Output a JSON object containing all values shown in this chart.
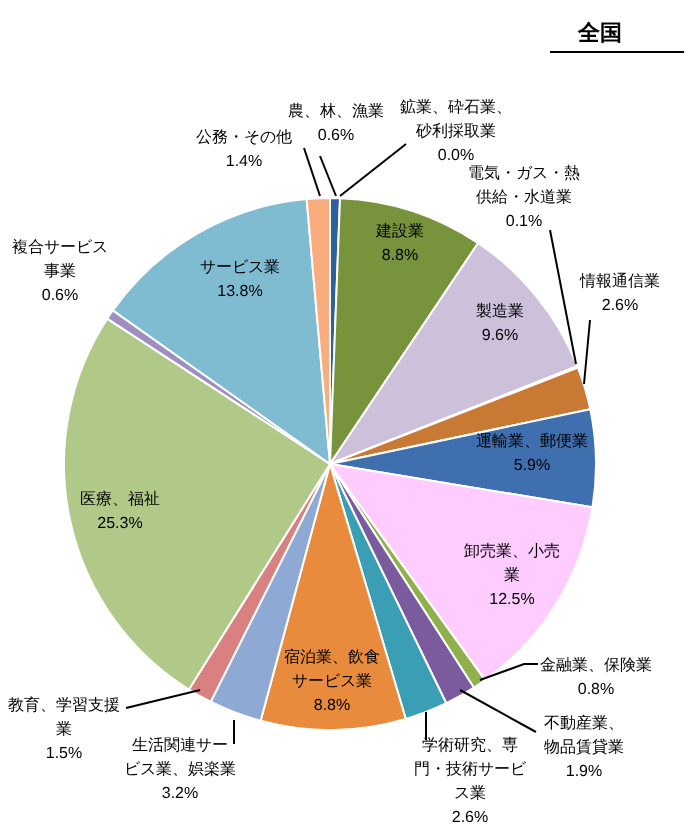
{
  "chart_data": {
    "type": "pie",
    "title": "全国",
    "categories": [
      "農、林、漁業",
      "鉱業、砕石業、砂利採取業",
      "建設業",
      "製造業",
      "電気・ガス・熱供給・水道業",
      "情報通信業",
      "運輸業、郵便業",
      "卸売業、小売業",
      "金融業、保険業",
      "不動産業、物品賃貸業",
      "学術研究、専門・技術サービス業",
      "宿泊業、飲食サービス業",
      "生活関連サービス業、娯楽業",
      "教育、学習支援業",
      "医療、福祉",
      "複合サービス事業",
      "サービス業",
      "公務・その他"
    ],
    "values": [
      0.6,
      0.0,
      8.8,
      9.6,
      0.1,
      2.6,
      5.9,
      12.5,
      0.8,
      1.9,
      2.6,
      8.8,
      3.2,
      1.5,
      25.3,
      0.6,
      13.8,
      1.4
    ],
    "value_labels": [
      "0.6%",
      "0.0%",
      "8.8%",
      "9.6%",
      "0.1%",
      "2.6%",
      "5.9%",
      "12.5%",
      "0.8%",
      "1.9%",
      "2.6%",
      "8.8%",
      "3.2%",
      "1.5%",
      "25.3%",
      "0.6%",
      "13.8%",
      "1.4%"
    ],
    "colors": [
      "#2e5f9e",
      "#8a8a8a",
      "#77933c",
      "#ccc0da",
      "#4bacc6",
      "#c87a35",
      "#3f6fae",
      "#ffccff",
      "#8fb04a",
      "#7a5c9e",
      "#3a9fb5",
      "#e88b3c",
      "#8ea9d4",
      "#d98080",
      "#b0c988",
      "#a08ec0",
      "#7fbcd2",
      "#f9ad7e"
    ],
    "legend": false
  }
}
